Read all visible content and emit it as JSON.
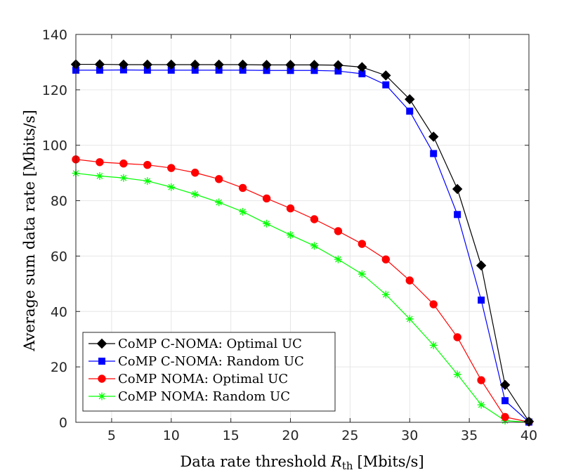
{
  "chart_data": {
    "type": "line",
    "title": "",
    "xlabel": "Data rate threshold",
    "xlabel_symbol": "R",
    "xlabel_subscript": "th",
    "xlabel_unit": "[Mbits/s]",
    "ylabel": "Average sum data rate [Mbits/s]",
    "xlim": [
      2,
      40
    ],
    "ylim": [
      0,
      140
    ],
    "xticks": [
      5,
      10,
      15,
      20,
      25,
      30,
      35,
      40
    ],
    "yticks": [
      0,
      20,
      40,
      60,
      80,
      100,
      120,
      140
    ],
    "grid": true,
    "legend_position": "bottom-left",
    "x": [
      2,
      4,
      6,
      8,
      10,
      12,
      14,
      16,
      18,
      20,
      22,
      24,
      26,
      28,
      30,
      32,
      34,
      36,
      38,
      40
    ],
    "series": [
      {
        "name": "CoMP C-NOMA: Optimal UC",
        "color": "#000000",
        "marker": "diamond",
        "values": [
          129.2,
          129.2,
          129.1,
          129.1,
          129.1,
          129.1,
          129.1,
          129.1,
          129.0,
          129.0,
          129.0,
          128.9,
          128.2,
          125.2,
          116.6,
          103.1,
          84.2,
          56.6,
          13.5,
          0.3
        ]
      },
      {
        "name": "CoMP C-NOMA: Random UC",
        "color": "#0000ff",
        "marker": "square",
        "values": [
          127.1,
          127.1,
          127.2,
          127.1,
          127.1,
          127.1,
          127.1,
          127.1,
          127.0,
          127.0,
          127.0,
          126.8,
          125.8,
          121.8,
          112.3,
          97.0,
          75.0,
          44.1,
          7.8,
          0.1
        ]
      },
      {
        "name": "CoMP NOMA: Optimal UC",
        "color": "#ff0000",
        "marker": "circle",
        "values": [
          94.9,
          93.9,
          93.4,
          92.9,
          91.8,
          90.1,
          87.8,
          84.6,
          80.8,
          77.2,
          73.3,
          69.0,
          64.4,
          58.8,
          51.2,
          42.6,
          30.7,
          15.2,
          1.9,
          0.1
        ]
      },
      {
        "name": "CoMP NOMA: Random UC",
        "color": "#00ff00",
        "marker": "asterisk",
        "values": [
          89.9,
          88.9,
          88.2,
          87.1,
          84.9,
          82.3,
          79.4,
          76.0,
          71.7,
          67.6,
          63.7,
          58.8,
          53.5,
          46.1,
          37.3,
          27.8,
          17.3,
          6.3,
          0.6,
          0.0
        ]
      }
    ]
  }
}
